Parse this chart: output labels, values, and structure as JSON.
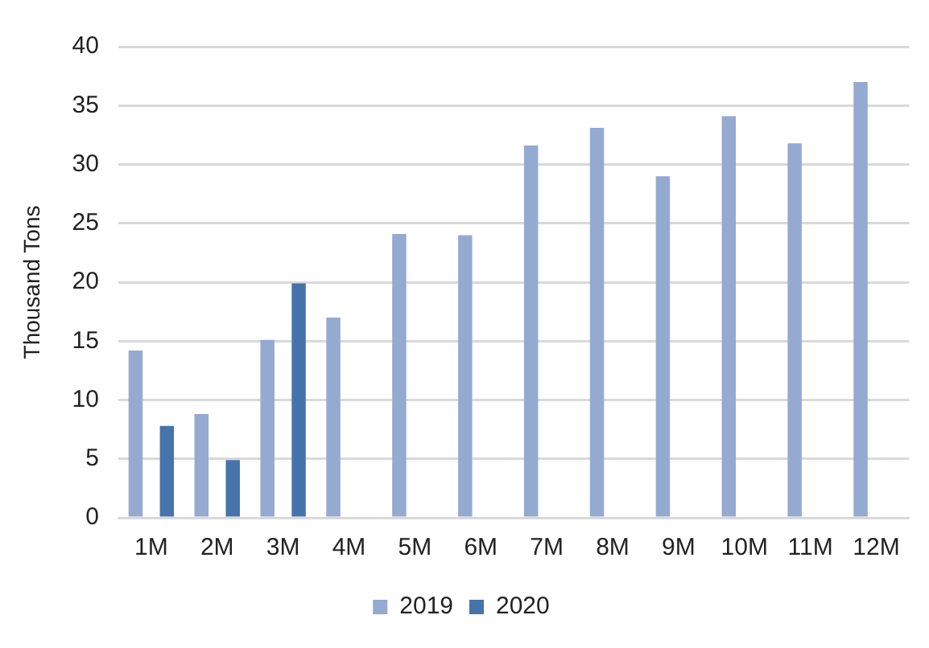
{
  "chart_data": {
    "type": "bar",
    "ylabel": "Thousand Tons",
    "categories": [
      "1M",
      "2M",
      "3M",
      "4M",
      "5M",
      "6M",
      "7M",
      "8M",
      "9M",
      "10M",
      "11M",
      "12M"
    ],
    "series": [
      {
        "name": "2019",
        "color": "#95aad1",
        "values": [
          14.2,
          8.8,
          15.1,
          17.0,
          24.1,
          24.0,
          31.6,
          33.1,
          29.0,
          34.1,
          31.8,
          37.0
        ]
      },
      {
        "name": "2020",
        "color": "#4674aa",
        "values": [
          7.8,
          4.9,
          19.9,
          null,
          null,
          null,
          null,
          null,
          null,
          null,
          null,
          null
        ]
      }
    ],
    "ylim": [
      0,
      40
    ],
    "yticks": [
      0,
      5,
      10,
      15,
      20,
      25,
      30,
      35,
      40
    ],
    "grid": "y",
    "legend": "bottom"
  }
}
